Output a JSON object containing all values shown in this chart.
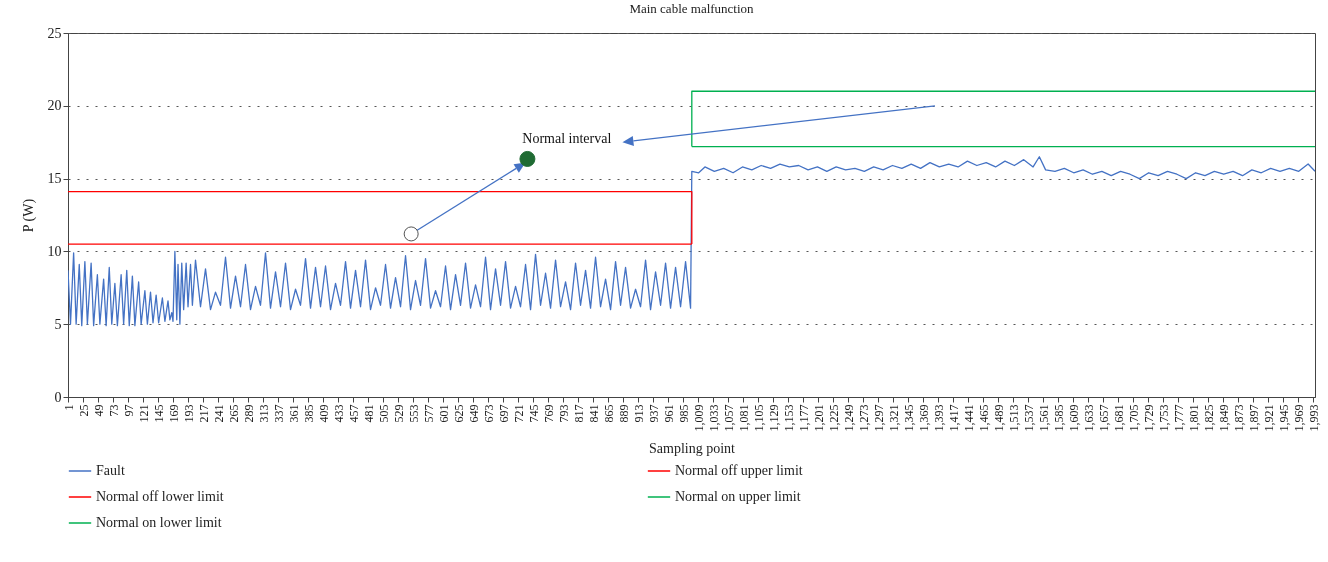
{
  "chart_data": {
    "type": "line",
    "title": "Main cable malfunction",
    "xlabel": "Sampling point",
    "ylabel": "P (W)",
    "xlim": [
      1,
      1996
    ],
    "ylim": [
      0,
      25
    ],
    "yticks": [
      0,
      5,
      10,
      15,
      20,
      25
    ],
    "xticks": [
      1,
      25,
      49,
      73,
      97,
      121,
      145,
      169,
      193,
      217,
      241,
      265,
      289,
      313,
      337,
      361,
      385,
      409,
      433,
      457,
      481,
      505,
      529,
      553,
      577,
      601,
      625,
      649,
      673,
      697,
      721,
      745,
      769,
      793,
      817,
      841,
      865,
      889,
      913,
      937,
      961,
      985,
      {
        "value": 1009,
        "label": "1,009"
      },
      {
        "value": 1033,
        "label": "1,033"
      },
      {
        "value": 1057,
        "label": "1,057"
      },
      {
        "value": 1081,
        "label": "1,081"
      },
      {
        "value": 1105,
        "label": "1,105"
      },
      {
        "value": 1129,
        "label": "1,129"
      },
      {
        "value": 1153,
        "label": "1,153"
      },
      {
        "value": 1177,
        "label": "1,177"
      },
      {
        "value": 1201,
        "label": "1,201"
      },
      {
        "value": 1225,
        "label": "1,225"
      },
      {
        "value": 1249,
        "label": "1,249"
      },
      {
        "value": 1273,
        "label": "1,273"
      },
      {
        "value": 1297,
        "label": "1,297"
      },
      {
        "value": 1321,
        "label": "1,321"
      },
      {
        "value": 1345,
        "label": "1,345"
      },
      {
        "value": 1369,
        "label": "1,369"
      },
      {
        "value": 1393,
        "label": "1,393"
      },
      {
        "value": 1417,
        "label": "1,417"
      },
      {
        "value": 1441,
        "label": "1,441"
      },
      {
        "value": 1465,
        "label": "1,465"
      },
      {
        "value": 1489,
        "label": "1,489"
      },
      {
        "value": 1513,
        "label": "1,513"
      },
      {
        "value": 1537,
        "label": "1,537"
      },
      {
        "value": 1561,
        "label": "1,561"
      },
      {
        "value": 1585,
        "label": "1,585"
      },
      {
        "value": 1609,
        "label": "1,609"
      },
      {
        "value": 1633,
        "label": "1,633"
      },
      {
        "value": 1657,
        "label": "1,657"
      },
      {
        "value": 1681,
        "label": "1,681"
      },
      {
        "value": 1705,
        "label": "1,705"
      },
      {
        "value": 1729,
        "label": "1,729"
      },
      {
        "value": 1753,
        "label": "1,753"
      },
      {
        "value": 1777,
        "label": "1,777"
      },
      {
        "value": 1801,
        "label": "1,801"
      },
      {
        "value": 1825,
        "label": "1,825"
      },
      {
        "value": 1849,
        "label": "1,849"
      },
      {
        "value": 1873,
        "label": "1,873"
      },
      {
        "value": 1897,
        "label": "1,897"
      },
      {
        "value": 1921,
        "label": "1,921"
      },
      {
        "value": 1945,
        "label": "1,945"
      },
      {
        "value": 1969,
        "label": "1,969"
      },
      {
        "value": 1993,
        "label": "1,993"
      }
    ],
    "grid": "y",
    "legend": "bottom",
    "marker": "none",
    "line_style": "solid",
    "annotations": [
      "Normal interval"
    ],
    "series": [
      {
        "name": "Fault",
        "color": "#4472c4",
        "x": [
          1,
          5,
          10,
          14,
          19,
          23,
          28,
          32,
          38,
          42,
          48,
          52,
          58,
          62,
          67,
          71,
          76,
          80,
          86,
          90,
          95,
          99,
          104,
          108,
          114,
          118,
          124,
          128,
          133,
          137,
          142,
          146,
          152,
          156,
          161,
          164,
          167,
          169,
          172,
          175,
          177,
          180,
          183,
          186,
          190,
          193,
          197,
          200,
          205,
          213,
          221,
          229,
          237,
          245,
          253,
          261,
          269,
          277,
          285,
          293,
          301,
          309,
          317,
          325,
          333,
          341,
          349,
          357,
          365,
          373,
          381,
          389,
          397,
          405,
          413,
          421,
          429,
          437,
          445,
          453,
          461,
          469,
          477,
          485,
          493,
          501,
          509,
          517,
          525,
          533,
          541,
          549,
          557,
          565,
          573,
          581,
          589,
          597,
          605,
          613,
          621,
          629,
          637,
          645,
          653,
          661,
          669,
          677,
          685,
          693,
          701,
          709,
          717,
          725,
          733,
          741,
          749,
          757,
          765,
          773,
          781,
          789,
          797,
          805,
          813,
          821,
          829,
          837,
          845,
          853,
          861,
          869,
          877,
          885,
          893,
          901,
          909,
          917,
          925,
          933,
          941,
          949,
          957,
          965,
          973,
          981,
          989,
          997,
          999,
          1010,
          1020,
          1035,
          1050,
          1065,
          1080,
          1095,
          1110,
          1125,
          1140,
          1155,
          1170,
          1185,
          1200,
          1215,
          1230,
          1245,
          1260,
          1275,
          1290,
          1305,
          1320,
          1335,
          1350,
          1365,
          1380,
          1395,
          1410,
          1425,
          1440,
          1455,
          1470,
          1485,
          1500,
          1515,
          1530,
          1545,
          1555,
          1565,
          1580,
          1595,
          1610,
          1625,
          1640,
          1655,
          1670,
          1685,
          1700,
          1715,
          1730,
          1745,
          1760,
          1775,
          1790,
          1805,
          1820,
          1835,
          1850,
          1865,
          1880,
          1895,
          1910,
          1925,
          1940,
          1955,
          1970,
          1985,
          1996
        ],
        "values": [
          8.7,
          5.0,
          9.9,
          5.0,
          9.1,
          4.9,
          9.3,
          5.0,
          9.2,
          4.9,
          8.4,
          5.0,
          8.1,
          4.9,
          8.9,
          5.0,
          7.8,
          4.9,
          8.4,
          5.0,
          8.7,
          4.9,
          8.3,
          4.9,
          7.9,
          5.0,
          7.3,
          5.0,
          7.2,
          5.1,
          7.0,
          5.1,
          6.8,
          5.2,
          6.6,
          5.3,
          5.8,
          5.2,
          10.0,
          5.3,
          9.1,
          5.0,
          9.2,
          6.0,
          9.2,
          6.2,
          9.1,
          6.3,
          9.4,
          6.2,
          8.8,
          6.0,
          7.2,
          6.3,
          9.6,
          6.1,
          8.3,
          6.2,
          9.1,
          6.0,
          7.6,
          6.3,
          9.9,
          6.1,
          8.6,
          6.2,
          9.2,
          6.0,
          7.4,
          6.3,
          9.5,
          6.1,
          8.9,
          6.2,
          9.0,
          6.0,
          7.8,
          6.3,
          9.3,
          6.1,
          8.7,
          6.2,
          9.4,
          6.0,
          7.5,
          6.3,
          9.1,
          6.1,
          8.2,
          6.2,
          9.7,
          6.0,
          8.0,
          6.3,
          9.5,
          6.1,
          7.3,
          6.2,
          9.0,
          6.0,
          8.4,
          6.3,
          9.2,
          6.1,
          7.7,
          6.2,
          9.6,
          6.0,
          8.8,
          6.3,
          9.3,
          6.1,
          7.6,
          6.2,
          9.1,
          6.0,
          9.8,
          6.3,
          8.5,
          6.1,
          9.4,
          6.2,
          7.9,
          6.0,
          9.2,
          6.3,
          8.7,
          6.1,
          9.6,
          6.2,
          8.1,
          6.0,
          9.3,
          6.3,
          8.9,
          6.1,
          7.4,
          6.2,
          9.4,
          6.0,
          8.6,
          6.3,
          9.2,
          6.1,
          8.9,
          6.2,
          9.3,
          6.1,
          15.5,
          15.4,
          15.8,
          15.5,
          15.7,
          15.4,
          15.8,
          15.6,
          15.9,
          15.7,
          16.0,
          15.8,
          15.9,
          15.6,
          15.8,
          15.5,
          15.8,
          15.6,
          15.7,
          15.5,
          15.8,
          15.6,
          15.9,
          15.7,
          16.0,
          15.7,
          16.1,
          15.8,
          16.0,
          15.8,
          16.2,
          15.9,
          16.1,
          15.8,
          16.2,
          15.9,
          16.3,
          15.8,
          16.5,
          15.6,
          15.5,
          15.7,
          15.4,
          15.6,
          15.3,
          15.5,
          15.2,
          15.5,
          15.3,
          15.0,
          15.4,
          15.2,
          15.5,
          15.3,
          15.0,
          15.4,
          15.2,
          15.5,
          15.3,
          15.5,
          15.2,
          15.6,
          15.4,
          15.7,
          15.5,
          15.7,
          15.5,
          16.0,
          15.5
        ]
      },
      {
        "name": "Normal off upper limit",
        "color": "#ff0000",
        "x": [
          1,
          999,
          999
        ],
        "values": [
          14.1,
          14.1,
          10.5
        ]
      },
      {
        "name": "Normal off lower limit",
        "color": "#ff0000",
        "x": [
          1,
          999
        ],
        "values": [
          10.5,
          10.5
        ]
      },
      {
        "name": "Normal on upper limit",
        "color": "#00b050",
        "x": [
          999,
          999,
          1996
        ],
        "values": [
          17.2,
          21.0,
          21.0
        ]
      },
      {
        "name": "Normal on lower limit",
        "color": "#00b050",
        "x": [
          999,
          1996
        ],
        "values": [
          17.2,
          17.2
        ]
      }
    ]
  }
}
